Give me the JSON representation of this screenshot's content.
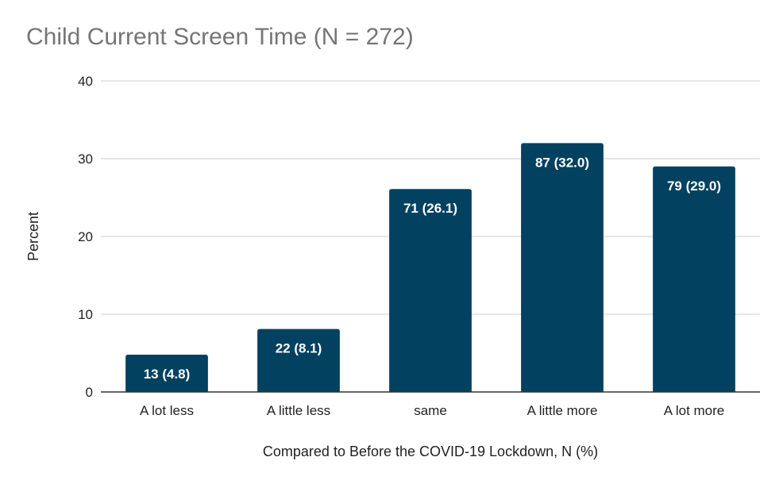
{
  "chart_data": {
    "type": "bar",
    "title": "Child Current Screen Time (N = 272)",
    "xlabel": "Compared to Before the COVID-19 Lockdown, N (%)",
    "ylabel": "Percent",
    "categories": [
      "A lot less",
      "A little less",
      "same",
      "A little more",
      "A lot more"
    ],
    "values": [
      4.8,
      8.1,
      26.1,
      32.0,
      29.0
    ],
    "data_labels": [
      "13 (4.8)",
      "22 (8.1)",
      "71 (26.1)",
      "87 (32.0)",
      "79 (29.0)"
    ],
    "ylim": [
      0,
      40
    ],
    "yticks": [
      "0",
      "10",
      "20",
      "30",
      "40"
    ],
    "grid": true,
    "legend": "none",
    "bar_color": "#02415f"
  }
}
